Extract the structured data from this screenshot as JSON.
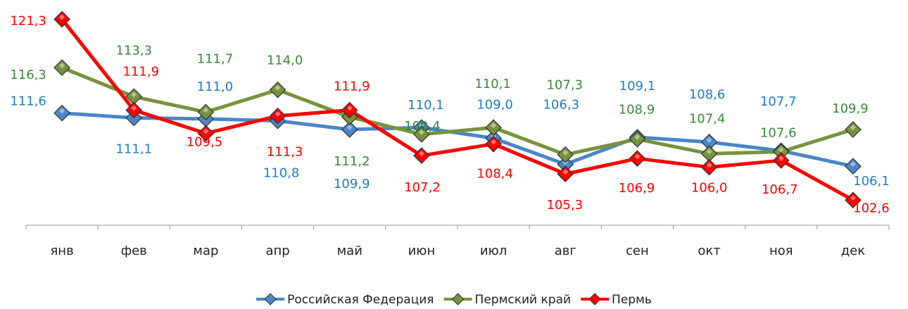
{
  "chart_data": {
    "type": "line",
    "categories": [
      "янв",
      "фев",
      "мар",
      "апр",
      "май",
      "июн",
      "июл",
      "авг",
      "сен",
      "окт",
      "ноя",
      "дек"
    ],
    "ylim": [
      100,
      123
    ],
    "legend": "bottom",
    "series": [
      {
        "name": "Российская Федерация",
        "color": "#4a86c8",
        "values": [
          111.6,
          111.1,
          111.0,
          110.8,
          109.9,
          110.1,
          109.0,
          106.3,
          109.1,
          108.6,
          107.7,
          106.1
        ],
        "value_labels": [
          "111,6",
          "111,1",
          "111,0",
          "110,8",
          "109,9",
          "110,1",
          "109,0",
          "106,3",
          "109,1",
          "108,6",
          "107,7",
          "106,1"
        ]
      },
      {
        "name": "Пермский край",
        "color": "#77933c",
        "values": [
          116.3,
          113.3,
          111.7,
          114.0,
          111.2,
          109.4,
          110.1,
          107.3,
          108.9,
          107.4,
          107.6,
          109.9
        ],
        "value_labels": [
          "116,3",
          "113,3",
          "111,7",
          "114,0",
          "111,2",
          "109,4",
          "110,1",
          "107,3",
          "108,9",
          "107,4",
          "107,6",
          "109,9"
        ]
      },
      {
        "name": "Пермь",
        "color": "#ff0000",
        "values": [
          121.3,
          111.9,
          109.5,
          111.3,
          111.9,
          107.2,
          108.4,
          105.3,
          106.9,
          106.0,
          106.7,
          102.6
        ],
        "value_labels": [
          "121,3",
          "111,9",
          "109,5",
          "111,3",
          "111,9",
          "107,2",
          "108,4",
          "105,3",
          "106,9",
          "106,0",
          "106,7",
          "102,6"
        ]
      }
    ]
  }
}
